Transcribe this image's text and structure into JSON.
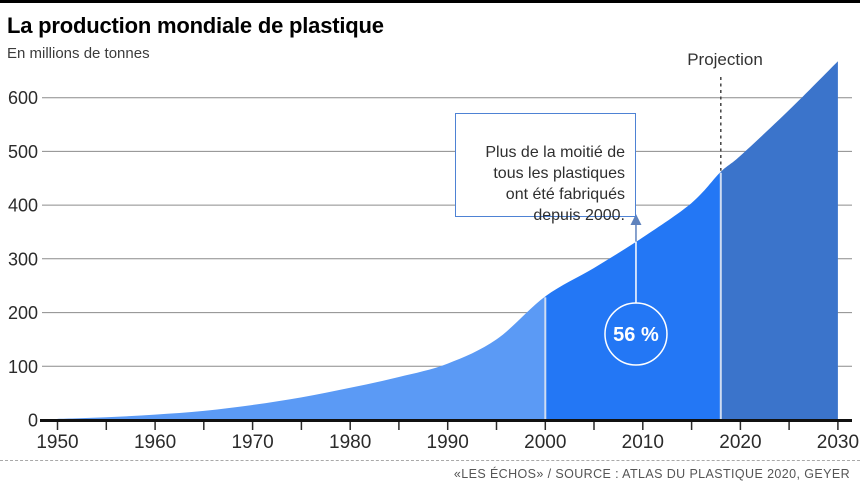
{
  "header": {
    "title": "La production mondiale de plastique",
    "subtitle": "En millions de tonnes"
  },
  "projection": {
    "label": "Projection",
    "start_year": 2018
  },
  "annotation": {
    "text": "Plus de la moitié de\ntous les plastiques\nont été fabriqués\ndepuis 2000.",
    "callout_value": "56 %"
  },
  "source": "«LES ÉCHOS» / SOURCE : ATLAS DU PLASTIQUE 2020, GEYER",
  "colors": {
    "area_1950_2000": "#5B9AF5",
    "area_2000_2018": "#2377F5",
    "area_projection": "#3B74CB",
    "segment_divider": "#cfdcf2",
    "grid": "#8c8c8c",
    "axis": "#111111",
    "tick": "#2b2b2b",
    "axis_label": "#2b2b2b",
    "dashed_projection_line": "#444444",
    "callout_circle_stroke": "#ffffff",
    "callout_text": "#ffffff",
    "arrow_lower": "#ffffff",
    "arrow_upper": "#5e82bd",
    "annotation_border": "#4e82d4"
  },
  "chart_data": {
    "type": "area",
    "title": "La production mondiale de plastique",
    "xlabel": "",
    "ylabel": "En millions de tonnes",
    "xlim": [
      1950,
      2030
    ],
    "ylim": [
      0,
      700
    ],
    "grid": "horizontal",
    "x": [
      1950,
      1955,
      1960,
      1965,
      1970,
      1975,
      1980,
      1985,
      1990,
      1995,
      2000,
      2005,
      2010,
      2015,
      2018,
      2020,
      2025,
      2030
    ],
    "values": [
      2,
      5,
      10,
      17,
      28,
      42,
      60,
      80,
      105,
      150,
      230,
      283,
      340,
      404,
      462,
      492,
      577,
      668
    ],
    "y_ticks": [
      0,
      100,
      200,
      300,
      400,
      500,
      600
    ],
    "x_tick_labels": [
      1950,
      1960,
      1970,
      1980,
      1990,
      2000,
      2010,
      2020,
      2030
    ],
    "minor_x_tick_step_years": 5,
    "segments": [
      {
        "name": "1950-2000",
        "from": 1950,
        "to": 2000
      },
      {
        "name": "2000-2018",
        "from": 2000,
        "to": 2018
      },
      {
        "name": "projection-2018-2030",
        "from": 2018,
        "to": 2030
      }
    ],
    "callout": {
      "value": "56 %",
      "year": 2009.3
    }
  }
}
